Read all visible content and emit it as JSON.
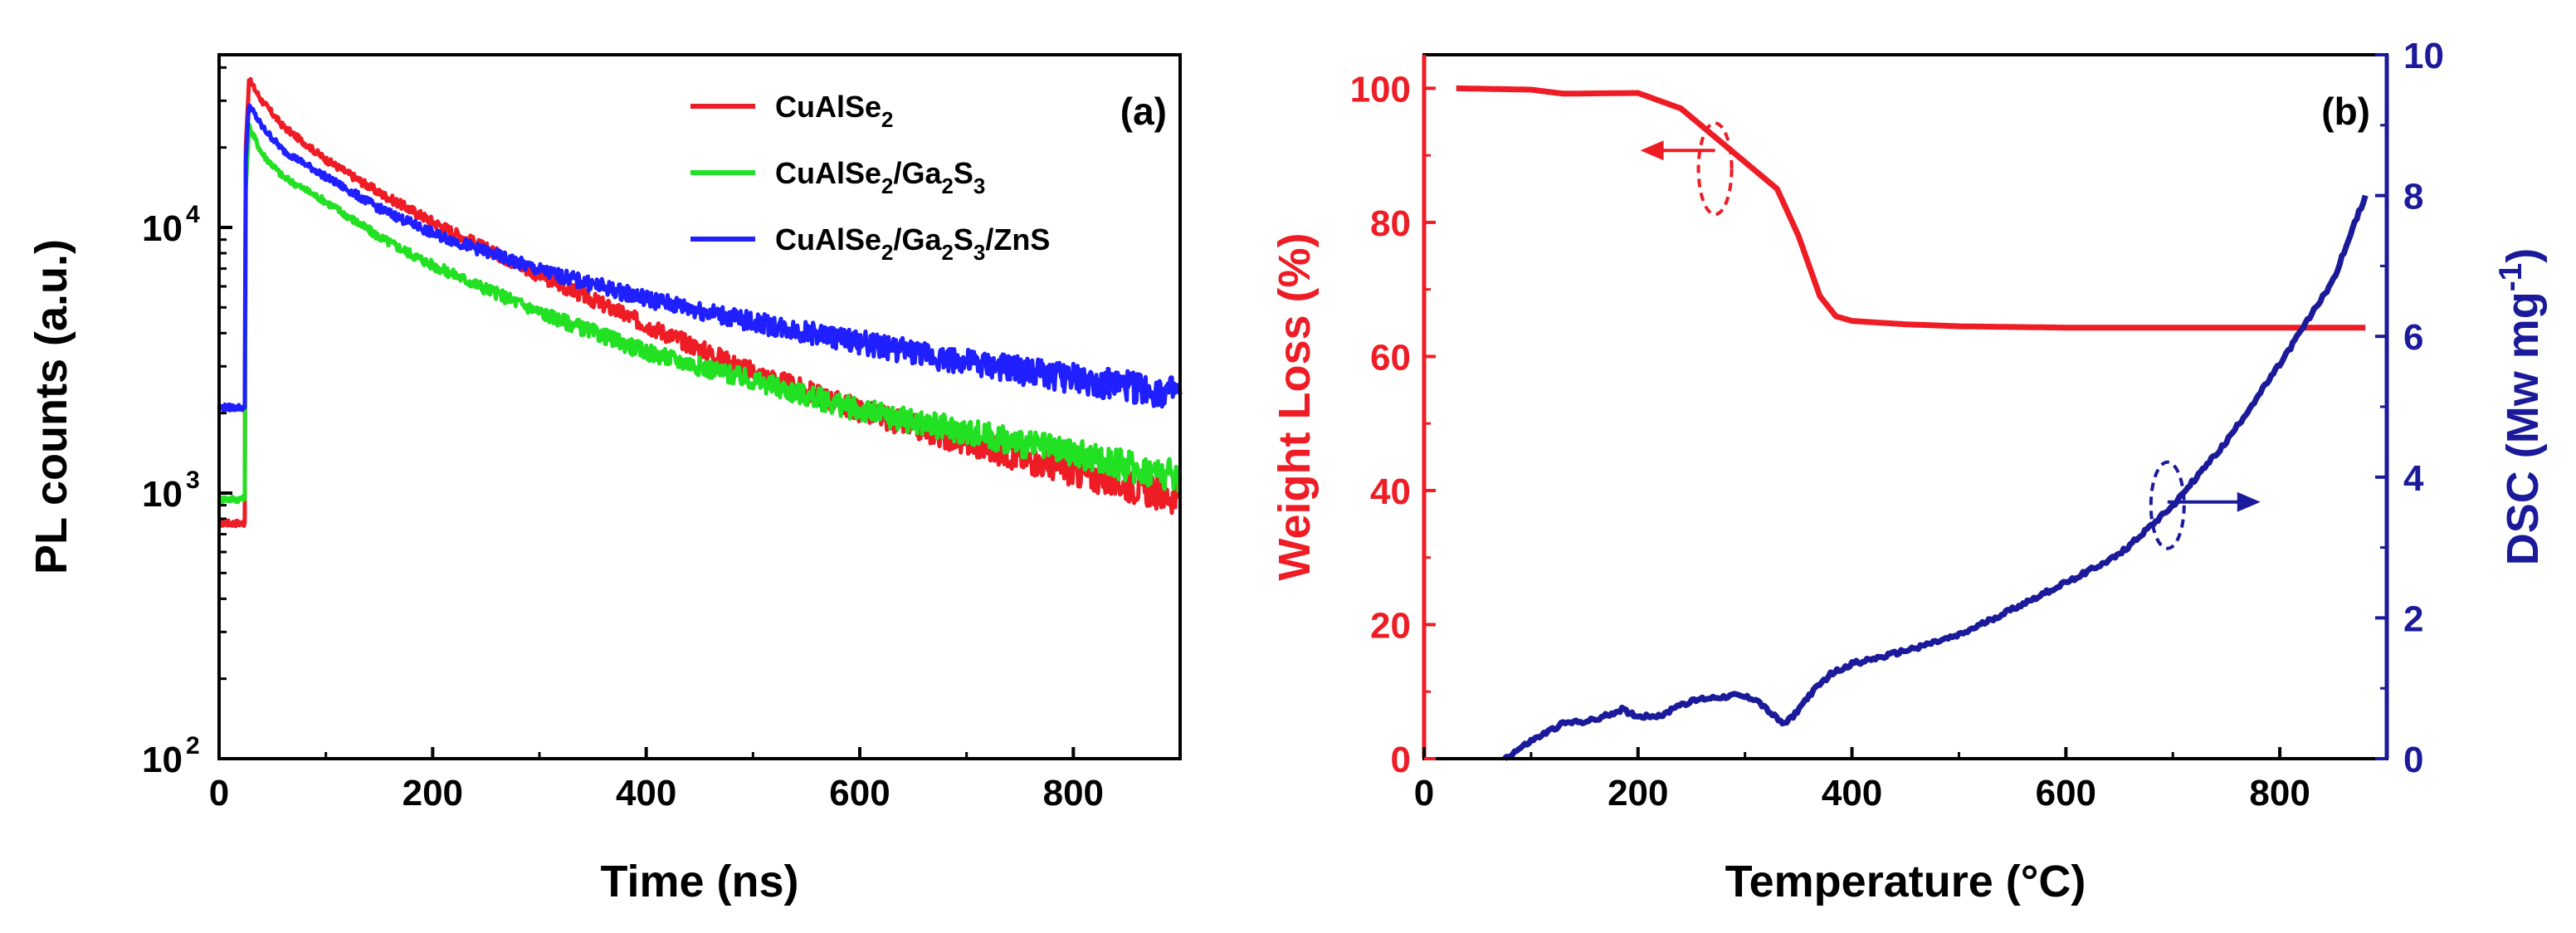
{
  "chart_data": [
    {
      "type": "line",
      "panel_label": "(a)",
      "xlabel": "Time (ns)",
      "ylabel": "PL counts (a.u.)",
      "xlim": [
        0,
        900
      ],
      "ylim_log10": [
        2,
        4.65
      ],
      "yscale": "log",
      "x_ticks": [
        0,
        200,
        400,
        600,
        800
      ],
      "y_ticks": [
        {
          "exp": 2,
          "base": "10",
          "sup": "2"
        },
        {
          "exp": 3,
          "base": "10",
          "sup": "3"
        },
        {
          "exp": 4,
          "base": "10",
          "sup": "4"
        }
      ],
      "legend_position": "top-right",
      "series": [
        {
          "name": "CuAlSe2",
          "label_main": "CuAlSe",
          "label_parts": [
            {
              "t": "CuAlSe"
            },
            {
              "t": "2",
              "sub": true
            }
          ],
          "color": "#ee1c25",
          "baseline": 770,
          "x": [
            0,
            24,
            25,
            28,
            40,
            60,
            100,
            150,
            200,
            300,
            400,
            500,
            600,
            700,
            800,
            900
          ],
          "y": [
            770,
            770,
            20000,
            36000,
            30000,
            24000,
            18000,
            13500,
            10500,
            6600,
            4300,
            2850,
            2050,
            1550,
            1200,
            950
          ]
        },
        {
          "name": "CuAlSe2/Ga2S3",
          "label_main": "CuAlSe/GaS",
          "label_parts": [
            {
              "t": "CuAlSe"
            },
            {
              "t": "2",
              "sub": true
            },
            {
              "t": "/Ga"
            },
            {
              "t": "2",
              "sub": true
            },
            {
              "t": "S"
            },
            {
              "t": "3",
              "sub": true
            }
          ],
          "color": "#22e022",
          "baseline": 950,
          "x": [
            0,
            24,
            25,
            28,
            40,
            60,
            100,
            150,
            200,
            300,
            400,
            500,
            600,
            700,
            800,
            900
          ],
          "y": [
            950,
            950,
            14000,
            24000,
            19000,
            15500,
            12500,
            9200,
            7200,
            4800,
            3400,
            2650,
            2050,
            1700,
            1400,
            1150
          ]
        },
        {
          "name": "CuAlSe2/Ga2S3/ZnS",
          "label_main": "CuAlSe/GaS/ZnS",
          "label_parts": [
            {
              "t": "CuAlSe"
            },
            {
              "t": "2",
              "sub": true
            },
            {
              "t": "/Ga"
            },
            {
              "t": "2",
              "sub": true
            },
            {
              "t": "S"
            },
            {
              "t": "3",
              "sub": true
            },
            {
              "t": "/ZnS"
            }
          ],
          "color": "#1f1fff",
          "baseline": 2100,
          "x": [
            0,
            24,
            25,
            28,
            40,
            60,
            100,
            150,
            200,
            300,
            400,
            500,
            600,
            700,
            800,
            900
          ],
          "y": [
            2100,
            2100,
            18000,
            29000,
            24000,
            19500,
            15500,
            11800,
            9500,
            6900,
            5400,
            4400,
            3700,
            3100,
            2700,
            2350
          ]
        }
      ]
    },
    {
      "type": "line",
      "panel_label": "(b)",
      "xlabel": "Temperature (°C)",
      "ylabel_left": "Weight Loss (%)",
      "ylabel_right": "DSC (Mw mg-1)",
      "ylabel_right_parts": [
        {
          "t": "DSC (Mw mg"
        },
        {
          "t": "-1",
          "sup": true
        },
        {
          "t": ")"
        }
      ],
      "xlim": [
        0,
        900
      ],
      "ylim_left": [
        0,
        105
      ],
      "ylim_right": [
        0,
        10
      ],
      "x_ticks": [
        0,
        200,
        400,
        600,
        800
      ],
      "y_ticks_left": [
        0,
        20,
        40,
        60,
        80,
        100
      ],
      "y_ticks_right": [
        0,
        2,
        4,
        6,
        8,
        10
      ],
      "left_axis_color": "#ee1c25",
      "right_axis_color": "#1a1a9a",
      "series": [
        {
          "name": "Weight Loss",
          "axis": "left",
          "color": "#ee1c25",
          "x": [
            30,
            100,
            130,
            200,
            240,
            270,
            300,
            330,
            350,
            370,
            385,
            400,
            450,
            500,
            600,
            700,
            800,
            880
          ],
          "y": [
            100,
            99.8,
            99.2,
            99.3,
            97,
            93,
            89,
            85,
            78,
            69,
            66,
            65.3,
            64.8,
            64.5,
            64.3,
            64.3,
            64.3,
            64.3
          ]
        },
        {
          "name": "DSC",
          "axis": "right",
          "color": "#1a1a9a",
          "x": [
            75,
            100,
            130,
            160,
            185,
            200,
            225,
            235,
            260,
            290,
            310,
            320,
            335,
            345,
            360,
            380,
            400,
            430,
            500,
            600,
            650,
            700,
            750,
            800,
            850,
            880
          ],
          "y": [
            0,
            0.25,
            0.5,
            0.55,
            0.7,
            0.6,
            0.62,
            0.75,
            0.85,
            0.9,
            0.85,
            0.7,
            0.5,
            0.6,
            0.9,
            1.2,
            1.35,
            1.45,
            1.75,
            2.5,
            2.9,
            3.6,
            4.5,
            5.6,
            6.8,
            8.0
          ]
        }
      ],
      "annotations": [
        {
          "type": "arrow",
          "target_axis": "left",
          "label": "left-arrow"
        },
        {
          "type": "arrow",
          "target_axis": "right",
          "label": "right-arrow"
        }
      ]
    }
  ]
}
